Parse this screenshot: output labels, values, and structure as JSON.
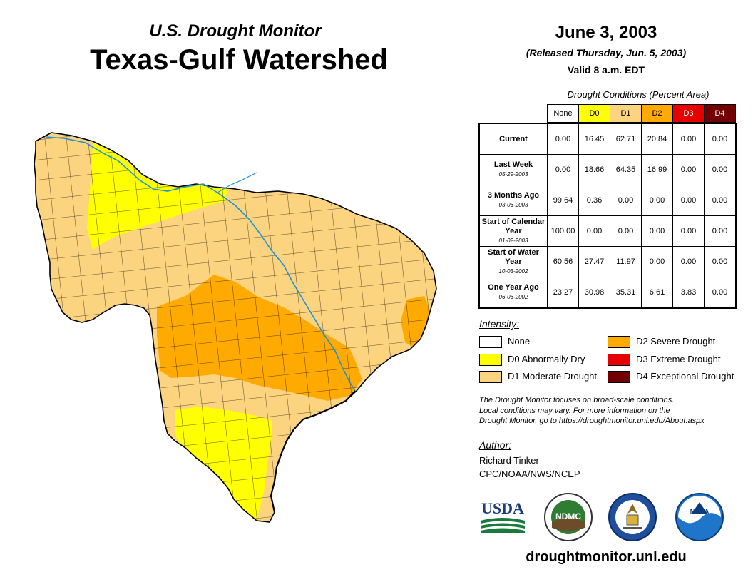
{
  "header": {
    "subtitle": "U.S. Drought Monitor",
    "title": "Texas-Gulf Watershed",
    "date": "June 3, 2003",
    "released": "(Released Thursday, Jun. 5, 2003)",
    "valid": "Valid 8 a.m. EDT"
  },
  "table": {
    "caption": "Drought Conditions (Percent Area)",
    "columns": [
      "None",
      "D0",
      "D1",
      "D2",
      "D3",
      "D4"
    ],
    "rows": [
      {
        "label": "Current",
        "date": "",
        "values": [
          "0.00",
          "16.45",
          "62.71",
          "20.84",
          "0.00",
          "0.00"
        ]
      },
      {
        "label": "Last Week",
        "date": "05-29-2003",
        "values": [
          "0.00",
          "18.66",
          "64.35",
          "16.99",
          "0.00",
          "0.00"
        ]
      },
      {
        "label": "3 Months Ago",
        "date": "03-06-2003",
        "values": [
          "99.64",
          "0.36",
          "0.00",
          "0.00",
          "0.00",
          "0.00"
        ]
      },
      {
        "label": "Start of Calendar Year",
        "date": "01-02-2003",
        "values": [
          "100.00",
          "0.00",
          "0.00",
          "0.00",
          "0.00",
          "0.00"
        ]
      },
      {
        "label": "Start of Water Year",
        "date": "10-03-2002",
        "values": [
          "60.56",
          "27.47",
          "11.97",
          "0.00",
          "0.00",
          "0.00"
        ]
      },
      {
        "label": "One Year Ago",
        "date": "06-06-2002",
        "values": [
          "23.27",
          "30.98",
          "35.31",
          "6.61",
          "3.83",
          "0.00"
        ]
      }
    ]
  },
  "legend": {
    "title": "Intensity:",
    "items": [
      {
        "label": "None",
        "color": "#ffffff"
      },
      {
        "label": "D0 Abnormally Dry",
        "color": "#ffff00"
      },
      {
        "label": "D1 Moderate Drought",
        "color": "#fcd37f"
      },
      {
        "label": "D2 Severe Drought",
        "color": "#ffaa00"
      },
      {
        "label": "D3 Extreme Drought",
        "color": "#e60000"
      },
      {
        "label": "D4 Exceptional Drought",
        "color": "#730000"
      }
    ]
  },
  "note": {
    "line1": "The Drought Monitor focuses on broad-scale conditions.",
    "line2": "Local conditions may vary. For more information on the",
    "line3": "Drought Monitor, go to https://droughtmonitor.unl.edu/About.aspx"
  },
  "author": {
    "title": "Author:",
    "name": "Richard Tinker",
    "org": "CPC/NOAA/NWS/NCEP"
  },
  "logos": {
    "usda": "USDA",
    "ndmc": "NDMC",
    "noaa": "NOAA"
  },
  "footer": {
    "website": "droughtmonitor.unl.edu"
  },
  "colors": {
    "none": "#ffffff",
    "d0": "#ffff00",
    "d1": "#fcd37f",
    "d2": "#ffaa00",
    "d3": "#e60000",
    "d4": "#730000",
    "river": "#1e90d6",
    "county_lines": "#000000"
  }
}
